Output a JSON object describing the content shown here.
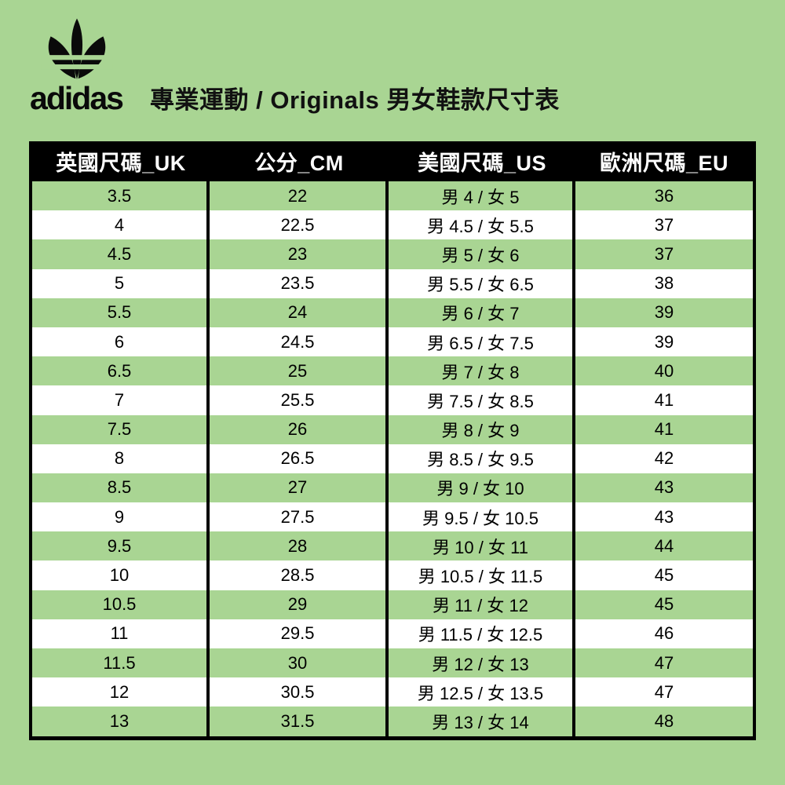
{
  "colors": {
    "background_green": "#A9D593",
    "row_green": "#A9D593",
    "row_white": "#FFFFFF",
    "header_background": "#000000",
    "header_text": "#FFFFFF",
    "body_text": "#000000",
    "logo_black": "#0A0A0A"
  },
  "brand": {
    "logo_icon": "adidas-trefoil-icon",
    "wordmark": "adidas"
  },
  "title": "專業運動 / Originals 男女鞋款尺寸表",
  "chart_data": {
    "type": "table",
    "title": "專業運動 / Originals 男女鞋款尺寸表",
    "columns": [
      "英國尺碼_UK",
      "公分_CM",
      "美國尺碼_US",
      "歐洲尺碼_EU"
    ],
    "rows": [
      [
        "3.5",
        "22",
        "男 4 / 女 5",
        "36"
      ],
      [
        "4",
        "22.5",
        "男 4.5 / 女 5.5",
        "37"
      ],
      [
        "4.5",
        "23",
        "男 5 / 女 6",
        "37"
      ],
      [
        "5",
        "23.5",
        "男 5.5 / 女 6.5",
        "38"
      ],
      [
        "5.5",
        "24",
        "男 6 / 女 7",
        "39"
      ],
      [
        "6",
        "24.5",
        "男 6.5 / 女 7.5",
        "39"
      ],
      [
        "6.5",
        "25",
        "男 7 / 女 8",
        "40"
      ],
      [
        "7",
        "25.5",
        "男 7.5 / 女 8.5",
        "41"
      ],
      [
        "7.5",
        "26",
        "男 8 / 女 9",
        "41"
      ],
      [
        "8",
        "26.5",
        "男 8.5 / 女 9.5",
        "42"
      ],
      [
        "8.5",
        "27",
        "男 9 / 女 10",
        "43"
      ],
      [
        "9",
        "27.5",
        "男 9.5 / 女 10.5",
        "43"
      ],
      [
        "9.5",
        "28",
        "男 10 / 女 11",
        "44"
      ],
      [
        "10",
        "28.5",
        "男 10.5 / 女 11.5",
        "45"
      ],
      [
        "10.5",
        "29",
        "男 11 / 女 12",
        "45"
      ],
      [
        "11",
        "29.5",
        "男 11.5 / 女 12.5",
        "46"
      ],
      [
        "11.5",
        "30",
        "男 12 / 女 13",
        "47"
      ],
      [
        "12",
        "30.5",
        "男 12.5 / 女 13.5",
        "47"
      ],
      [
        "13",
        "31.5",
        "男 13 / 女 14",
        "48"
      ]
    ],
    "layout": {
      "first_data_row_color": "green",
      "alternating_rows": true,
      "header_style": "black band, white bold text",
      "grid": "black vertical column separators, black outer left/right/bottom border"
    }
  }
}
